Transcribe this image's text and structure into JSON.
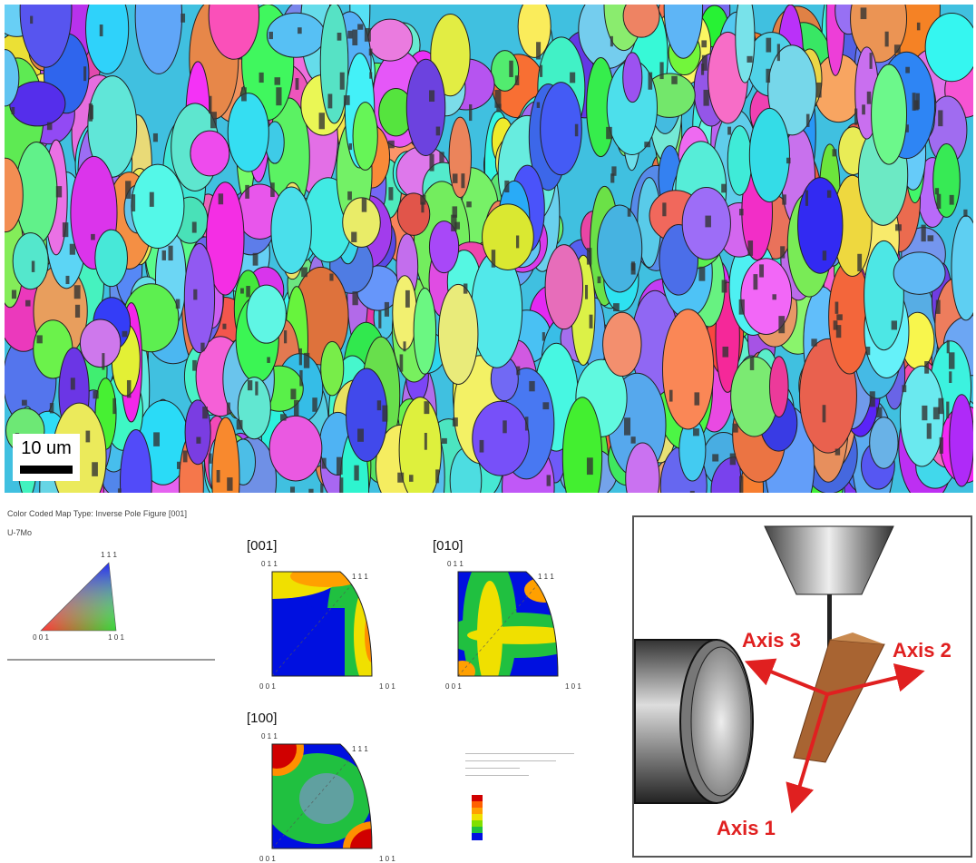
{
  "map": {
    "scale_bar": "10 um"
  },
  "ipf_key": {
    "title": "Color Coded Map Type: Inverse Pole Figure [001]",
    "material": "U-7Mo",
    "corners": [
      "1 1 1",
      "0 0 1",
      "1 0 1"
    ]
  },
  "pole_figures": [
    {
      "label": "[001]",
      "corners": [
        "0 1 1",
        "1 1 1",
        "0 0 1",
        "1 0 1"
      ]
    },
    {
      "label": "[010]",
      "corners": [
        "0 1 1",
        "1 1 1",
        "0 0 1",
        "1 0 1"
      ]
    },
    {
      "label": "[100]",
      "corners": [
        "0 1 1",
        "1 1 1",
        "0 0 1",
        "1 0 1"
      ]
    }
  ],
  "schematic": {
    "axes": [
      "Axis 3",
      "Axis 2",
      "Axis 1"
    ]
  }
}
